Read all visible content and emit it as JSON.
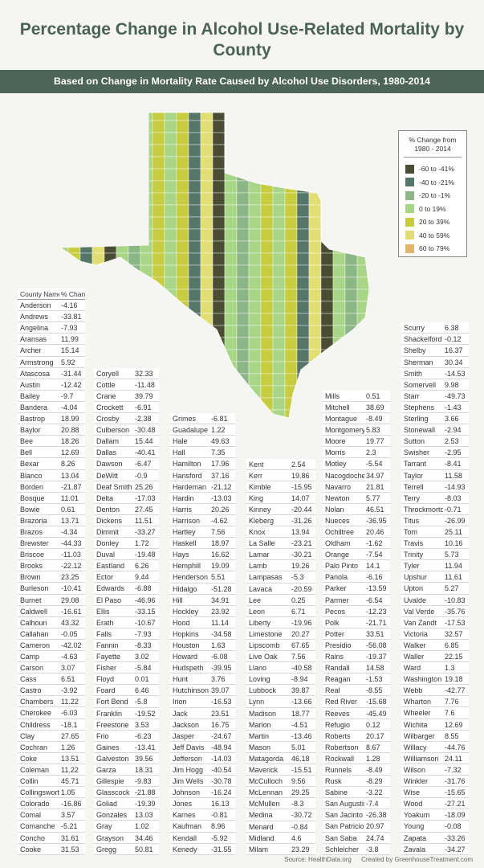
{
  "title": "Percentage Change in Alcohol Use-Related Mortality by County",
  "subtitle": "Based on Change in Mortality Rate Caused by Alcohol Use Disorders, 1980-2014",
  "legend": {
    "title": "% Change from 1980 - 2014",
    "items": [
      {
        "label": "-60 to -41%",
        "color": "#4a4d34"
      },
      {
        "label": "-40 to -21%",
        "color": "#56766a"
      },
      {
        "label": "-20 to -1%",
        "color": "#8db686"
      },
      {
        "label": "0 to 19%",
        "color": "#a9d586"
      },
      {
        "label": "20 to 39%",
        "color": "#c8cc3f"
      },
      {
        "label": "40 to 59%",
        "color": "#e2de73"
      },
      {
        "label": "60 to 79%",
        "color": "#e1b56c"
      }
    ]
  },
  "table_header": [
    "County Name",
    "% Change"
  ],
  "tables": [
    [
      [
        "Anderson",
        -4.16
      ],
      [
        "Andrews",
        -33.81
      ],
      [
        "Angelina",
        -7.93
      ],
      [
        "Aransas",
        11.99
      ],
      [
        "Archer",
        15.14
      ],
      [
        "Armstrong",
        5.92
      ],
      [
        "Atascosa",
        -31.44
      ],
      [
        "Austin",
        -12.42
      ],
      [
        "Bailey",
        -9.7
      ],
      [
        "Bandera",
        -4.04
      ],
      [
        "Bastrop",
        18.99
      ],
      [
        "Baylor",
        20.88
      ],
      [
        "Bee",
        18.26
      ],
      [
        "Bell",
        12.69
      ],
      [
        "Bexar",
        8.26
      ],
      [
        "Blanco",
        13.04
      ],
      [
        "Borden",
        -21.87
      ],
      [
        "Bosque",
        11.01
      ],
      [
        "Bowie",
        0.61
      ],
      [
        "Brazoria",
        13.71
      ],
      [
        "Brazos",
        -4.34
      ],
      [
        "Brewster",
        -44.33
      ],
      [
        "Briscoe",
        -11.03
      ],
      [
        "Brooks",
        -22.12
      ],
      [
        "Brown",
        23.25
      ],
      [
        "Burleson",
        -10.41
      ],
      [
        "Burnet",
        29.08
      ],
      [
        "Caldwell",
        -16.61
      ],
      [
        "Calhoun",
        43.32
      ],
      [
        "Callahan",
        -0.05
      ],
      [
        "Cameron",
        -42.02
      ],
      [
        "Camp",
        -4.63
      ],
      [
        "Carson",
        3.07
      ],
      [
        "Cass",
        6.51
      ],
      [
        "Castro",
        -3.92
      ],
      [
        "Chambers",
        11.22
      ],
      [
        "Cherokee",
        -6.03
      ],
      [
        "Childress",
        -18.1
      ],
      [
        "Clay",
        27.65
      ],
      [
        "Cochran",
        1.26
      ],
      [
        "Coke",
        13.51
      ],
      [
        "Coleman",
        11.22
      ],
      [
        "Collin",
        45.71
      ],
      [
        "Collingsworth",
        1.05
      ],
      [
        "Colorado",
        -16.86
      ],
      [
        "Comal",
        3.57
      ],
      [
        "Comanche",
        -5.21
      ],
      [
        "Concho",
        31.61
      ],
      [
        "Cooke",
        31.53
      ]
    ],
    [
      [
        "Coryell",
        32.33
      ],
      [
        "Cottle",
        -11.48
      ],
      [
        "Crane",
        39.79
      ],
      [
        "Crockett",
        -6.91
      ],
      [
        "Crosby",
        -2.38
      ],
      [
        "Culberson",
        -30.48
      ],
      [
        "Dallam",
        15.44
      ],
      [
        "Dallas",
        -40.41
      ],
      [
        "Dawson",
        -6.47
      ],
      [
        "DeWitt",
        -0.9
      ],
      [
        "Deaf Smith",
        25.26
      ],
      [
        "Delta",
        -17.03
      ],
      [
        "Denton",
        27.45
      ],
      [
        "Dickens",
        11.51
      ],
      [
        "Dimmit",
        -33.27
      ],
      [
        "Donley",
        1.72
      ],
      [
        "Duval",
        -19.48
      ],
      [
        "Eastland",
        6.26
      ],
      [
        "Ector",
        9.44
      ],
      [
        "Edwards",
        -6.88
      ],
      [
        "El Paso",
        -46.96
      ],
      [
        "Ellis",
        -33.15
      ],
      [
        "Erath",
        -10.67
      ],
      [
        "Falls",
        -7.93
      ],
      [
        "Fannin",
        -8.33
      ],
      [
        "Fayette",
        3.02
      ],
      [
        "Fisher",
        -5.84
      ],
      [
        "Floyd",
        0.01
      ],
      [
        "Foard",
        6.46
      ],
      [
        "Fort Bend",
        -5.8
      ],
      [
        "Franklin",
        -19.52
      ],
      [
        "Freestone",
        3.53
      ],
      [
        "Frio",
        -6.23
      ],
      [
        "Gaines",
        -13.41
      ],
      [
        "Galveston",
        39.56
      ],
      [
        "Garza",
        18.31
      ],
      [
        "Gillespie",
        -9.83
      ],
      [
        "Glasscock",
        -21.88
      ],
      [
        "Goliad",
        -19.39
      ],
      [
        "Gonzales",
        13.03
      ],
      [
        "Gray",
        1.02
      ],
      [
        "Grayson",
        34.46
      ],
      [
        "Gregg",
        50.81
      ]
    ],
    [
      [
        "Grimes",
        -6.81
      ],
      [
        "Guadalupe",
        1.22
      ],
      [
        "Hale",
        49.63
      ],
      [
        "Hall",
        7.35
      ],
      [
        "Hamilton",
        17.96
      ],
      [
        "Hansford",
        37.16
      ],
      [
        "Hardeman",
        -21.12
      ],
      [
        "Hardin",
        -13.03
      ],
      [
        "Harris",
        20.26
      ],
      [
        "Harrison",
        -4.62
      ],
      [
        "Hartley",
        7.56
      ],
      [
        "Haskell",
        18.97
      ],
      [
        "Hays",
        16.62
      ],
      [
        "Hemphill",
        19.09
      ],
      [
        "Henderson",
        5.51
      ],
      [
        "Hidalgo",
        -51.28
      ],
      [
        "Hill",
        34.91
      ],
      [
        "Hockley",
        23.92
      ],
      [
        "Hood",
        11.14
      ],
      [
        "Hopkins",
        -34.58
      ],
      [
        "Houston",
        1.63
      ],
      [
        "Howard",
        -6.08
      ],
      [
        "Hudspeth",
        -39.95
      ],
      [
        "Hunt",
        3.76
      ],
      [
        "Hutchinson",
        39.07
      ],
      [
        "Irion",
        -16.53
      ],
      [
        "Jack",
        23.51
      ],
      [
        "Jackson",
        16.75
      ],
      [
        "Jasper",
        -24.67
      ],
      [
        "Jeff Davis",
        -48.94
      ],
      [
        "Jefferson",
        -14.03
      ],
      [
        "Jim Hogg",
        -40.54
      ],
      [
        "Jim Wells",
        -30.78
      ],
      [
        "Johnson",
        -16.24
      ],
      [
        "Jones",
        16.13
      ],
      [
        "Karnes",
        -0.81
      ],
      [
        "Kaufman",
        8.96
      ],
      [
        "Kendall",
        -5.92
      ],
      [
        "Kenedy",
        -31.55
      ]
    ],
    [
      [
        "Kent",
        2.54
      ],
      [
        "Kerr",
        19.86
      ],
      [
        "Kimble",
        -15.95
      ],
      [
        "King",
        14.07
      ],
      [
        "Kinney",
        -20.44
      ],
      [
        "Kleberg",
        -31.26
      ],
      [
        "Knox",
        13.94
      ],
      [
        "La Salle",
        -23.21
      ],
      [
        "Lamar",
        -30.21
      ],
      [
        "Lamb",
        19.26
      ],
      [
        "Lampasas",
        -5.3
      ],
      [
        "Lavaca",
        -20.59
      ],
      [
        "Lee",
        0.25
      ],
      [
        "Leon",
        6.71
      ],
      [
        "Liberty",
        -19.96
      ],
      [
        "Limestone",
        20.27
      ],
      [
        "Lipscomb",
        67.65
      ],
      [
        "Live Oak",
        7.56
      ],
      [
        "Llano",
        -40.58
      ],
      [
        "Loving",
        -8.94
      ],
      [
        "Lubbock",
        39.87
      ],
      [
        "Lynn",
        -13.66
      ],
      [
        "Madison",
        18.77
      ],
      [
        "Marion",
        -4.51
      ],
      [
        "Martin",
        -13.46
      ],
      [
        "Mason",
        5.01
      ],
      [
        "Matagorda",
        46.18
      ],
      [
        "Maverick",
        -15.51
      ],
      [
        "McCulloch",
        9.56
      ],
      [
        "McLennan",
        29.25
      ],
      [
        "McMullen",
        -8.3
      ],
      [
        "Medina",
        -30.72
      ],
      [
        "Menard",
        -0.84
      ],
      [
        "Midland",
        4.6
      ],
      [
        "Milam",
        23.29
      ]
    ],
    [
      [
        "Mills",
        0.51
      ],
      [
        "Mitchell",
        38.69
      ],
      [
        "Montague",
        -8.49
      ],
      [
        "Montgomery",
        5.83
      ],
      [
        "Moore",
        19.77
      ],
      [
        "Morris",
        2.3
      ],
      [
        "Motley",
        -5.54
      ],
      [
        "Nacogdoches",
        34.97
      ],
      [
        "Navarro",
        21.81
      ],
      [
        "Newton",
        5.77
      ],
      [
        "Nolan",
        46.51
      ],
      [
        "Nueces",
        -36.95
      ],
      [
        "Ochiltree",
        20.46
      ],
      [
        "Oldham",
        -1.62
      ],
      [
        "Orange",
        -7.54
      ],
      [
        "Palo Pinto",
        14.1
      ],
      [
        "Panola",
        -6.16
      ],
      [
        "Parker",
        -13.59
      ],
      [
        "Parmer",
        -6.54
      ],
      [
        "Pecos",
        -12.23
      ],
      [
        "Polk",
        -21.71
      ],
      [
        "Potter",
        33.51
      ],
      [
        "Presidio",
        -56.08
      ],
      [
        "Rains",
        -19.37
      ],
      [
        "Randall",
        14.58
      ],
      [
        "Reagan",
        -1.53
      ],
      [
        "Real",
        -8.55
      ],
      [
        "Red River",
        -15.68
      ],
      [
        "Reeves",
        -45.49
      ],
      [
        "Refugio",
        0.12
      ],
      [
        "Roberts",
        20.17
      ],
      [
        "Robertson",
        8.67
      ],
      [
        "Rockwall",
        1.28
      ],
      [
        "Runnels",
        -8.49
      ],
      [
        "Rusk",
        -8.29
      ],
      [
        "Sabine",
        -3.22
      ],
      [
        "San Augustine",
        -7.4
      ],
      [
        "San Jacinto",
        -26.38
      ],
      [
        "San Patricio",
        20.97
      ],
      [
        "San Saba",
        24.74
      ],
      [
        "Schleicher",
        -3.8
      ]
    ],
    [
      [
        "Scurry",
        6.38
      ],
      [
        "Shackelford",
        -0.12
      ],
      [
        "Shelby",
        16.37
      ],
      [
        "Sherman",
        30.34
      ],
      [
        "Smith",
        -14.53
      ],
      [
        "Somervell",
        9.98
      ],
      [
        "Starr",
        -49.73
      ],
      [
        "Stephens",
        -1.43
      ],
      [
        "Sterling",
        3.66
      ],
      [
        "Stonewall",
        -2.94
      ],
      [
        "Sutton",
        2.53
      ],
      [
        "Swisher",
        -2.95
      ],
      [
        "Tarrant",
        -8.41
      ],
      [
        "Taylor",
        11.58
      ],
      [
        "Terrell",
        -14.93
      ],
      [
        "Terry",
        -8.03
      ],
      [
        "Throckmorton",
        -0.71
      ],
      [
        "Titus",
        -26.99
      ],
      [
        "Tom",
        25.11
      ],
      [
        "Travis",
        10.16
      ],
      [
        "Trinity",
        5.73
      ],
      [
        "Tyler",
        11.94
      ],
      [
        "Upshur",
        11.61
      ],
      [
        "Upton",
        5.27
      ],
      [
        "Uvalde",
        -10.83
      ],
      [
        "Val Verde",
        -35.76
      ],
      [
        "Van Zandt",
        -17.53
      ],
      [
        "Victoria",
        32.57
      ],
      [
        "Walker",
        6.85
      ],
      [
        "Waller",
        22.15
      ],
      [
        "Ward",
        1.3
      ],
      [
        "Washington",
        19.18
      ],
      [
        "Webb",
        -42.77
      ],
      [
        "Wharton",
        7.76
      ],
      [
        "Wheeler",
        7.6
      ],
      [
        "Wichita",
        12.69
      ],
      [
        "Wilbarger",
        8.55
      ],
      [
        "Willacy",
        -44.76
      ],
      [
        "Williamson",
        24.11
      ],
      [
        "Wilson",
        -7.32
      ],
      [
        "Winkler",
        -31.76
      ],
      [
        "Wise",
        -15.65
      ],
      [
        "Wood",
        -27.21
      ],
      [
        "Yoakum",
        -18.09
      ],
      [
        "Young",
        -0.08
      ],
      [
        "Zapata",
        -33.26
      ],
      [
        "Zavala",
        -34.27
      ]
    ]
  ],
  "footer": [
    "Source: HealthData.org",
    "Created by GreenhouseTreatment.com"
  ]
}
